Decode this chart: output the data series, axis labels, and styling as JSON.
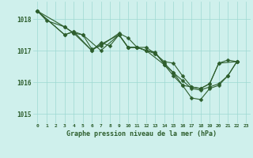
{
  "title": "Graphe pression niveau de la mer (hPa)",
  "background_color": "#cff0ec",
  "grid_color": "#9dd8d2",
  "line_color": "#2d5e2d",
  "xlim": [
    -0.5,
    23.5
  ],
  "ylim": [
    1014.7,
    1018.55
  ],
  "yticks": [
    1015,
    1016,
    1017,
    1018
  ],
  "xticks": [
    0,
    1,
    2,
    3,
    4,
    5,
    6,
    7,
    8,
    9,
    10,
    11,
    12,
    13,
    14,
    15,
    16,
    17,
    18,
    19,
    20,
    21,
    22,
    23
  ],
  "series1": [
    [
      0,
      1018.25
    ],
    [
      1,
      1017.95
    ],
    [
      3,
      1017.75
    ],
    [
      4,
      1017.55
    ],
    [
      6,
      1017.0
    ],
    [
      7,
      1017.25
    ],
    [
      8,
      1017.15
    ],
    [
      9,
      1017.5
    ],
    [
      10,
      1017.1
    ],
    [
      11,
      1017.1
    ],
    [
      12,
      1017.0
    ],
    [
      14,
      1016.55
    ],
    [
      15,
      1016.3
    ],
    [
      16,
      1015.9
    ],
    [
      17,
      1015.85
    ],
    [
      18,
      1015.8
    ],
    [
      19,
      1015.95
    ],
    [
      20,
      1016.6
    ],
    [
      22,
      1016.65
    ]
  ],
  "series2": [
    [
      0,
      1018.25
    ],
    [
      3,
      1017.5
    ],
    [
      4,
      1017.6
    ],
    [
      6,
      1017.0
    ],
    [
      7,
      1017.2
    ],
    [
      9,
      1017.5
    ],
    [
      10,
      1017.1
    ],
    [
      11,
      1017.1
    ],
    [
      12,
      1017.0
    ],
    [
      13,
      1016.95
    ],
    [
      14,
      1016.55
    ],
    [
      15,
      1016.2
    ],
    [
      16,
      1015.9
    ],
    [
      17,
      1015.5
    ],
    [
      18,
      1015.45
    ],
    [
      19,
      1015.8
    ],
    [
      20,
      1015.9
    ],
    [
      21,
      1016.2
    ],
    [
      22,
      1016.65
    ]
  ],
  "series3": [
    [
      0,
      1018.25
    ],
    [
      3,
      1017.75
    ],
    [
      4,
      1017.55
    ],
    [
      5,
      1017.5
    ],
    [
      6,
      1017.05
    ],
    [
      7,
      1017.15
    ],
    [
      9,
      1017.55
    ],
    [
      10,
      1017.4
    ],
    [
      11,
      1017.1
    ],
    [
      12,
      1017.1
    ],
    [
      13,
      1016.9
    ],
    [
      14,
      1016.65
    ],
    [
      15,
      1016.6
    ],
    [
      16,
      1016.2
    ],
    [
      17,
      1015.85
    ],
    [
      18,
      1015.8
    ],
    [
      19,
      1015.95
    ],
    [
      20,
      1016.6
    ],
    [
      21,
      1016.7
    ],
    [
      22,
      1016.65
    ]
  ],
  "series4": [
    [
      0,
      1018.25
    ],
    [
      3,
      1017.5
    ],
    [
      4,
      1017.6
    ],
    [
      5,
      1017.5
    ],
    [
      7,
      1017.0
    ],
    [
      9,
      1017.5
    ],
    [
      10,
      1017.1
    ],
    [
      11,
      1017.1
    ],
    [
      12,
      1017.0
    ],
    [
      13,
      1016.9
    ],
    [
      14,
      1016.6
    ],
    [
      15,
      1016.3
    ],
    [
      16,
      1016.05
    ],
    [
      17,
      1015.8
    ],
    [
      18,
      1015.75
    ],
    [
      19,
      1015.85
    ],
    [
      20,
      1015.95
    ],
    [
      21,
      1016.2
    ],
    [
      22,
      1016.65
    ]
  ]
}
